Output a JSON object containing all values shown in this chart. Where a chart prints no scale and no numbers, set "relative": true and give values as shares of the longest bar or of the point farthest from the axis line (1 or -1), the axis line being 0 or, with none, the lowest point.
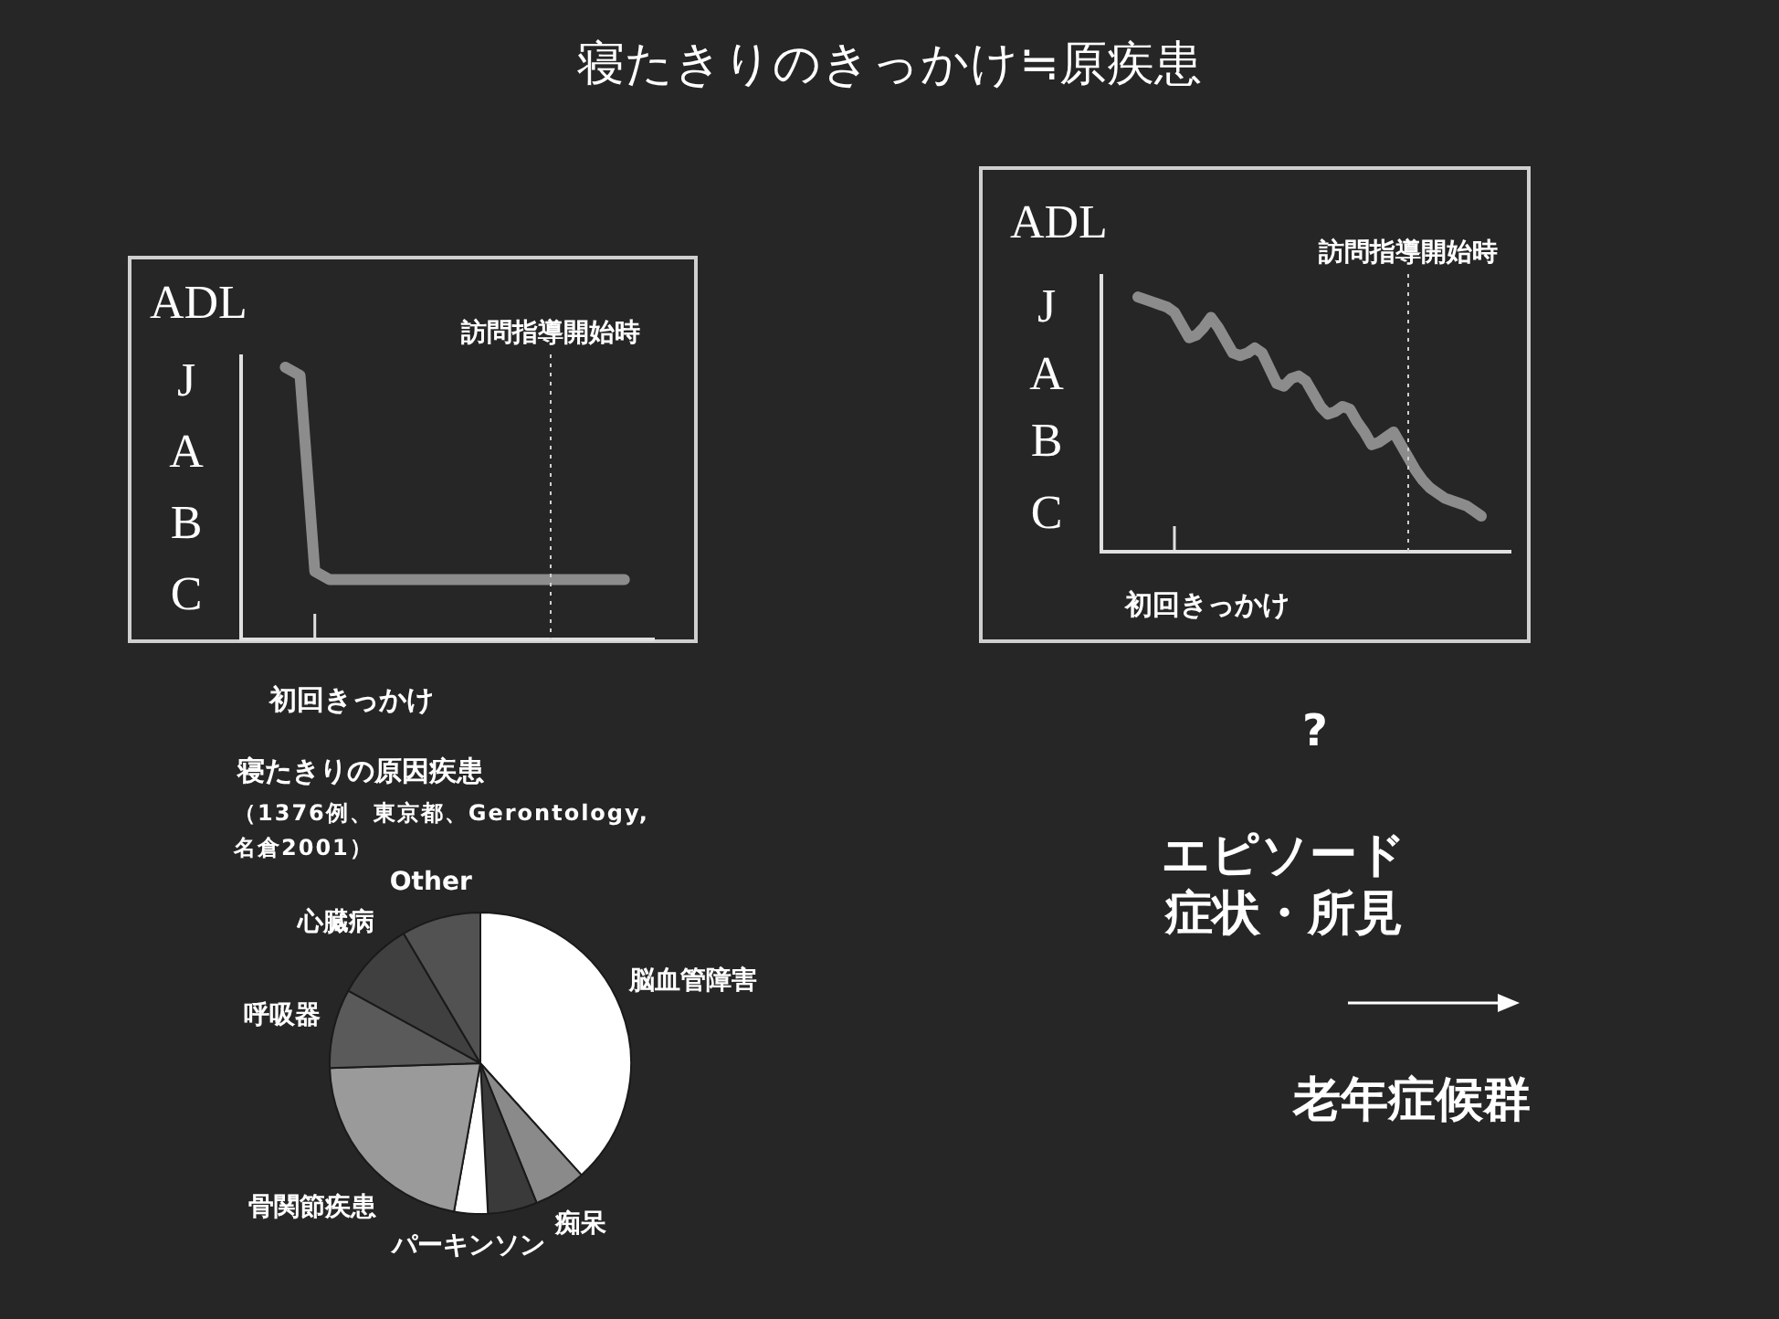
{
  "chart_data": [
    {
      "type": "line",
      "title": "寝たきりのきっかけ≒原疾患",
      "ylabel": "ADL",
      "xlabel": "初回きっかけ",
      "marker": "none",
      "relative": true,
      "annotations": [
        "J",
        "A",
        "B",
        "C"
      ],
      "categories": [
        null,
        null,
        null,
        null,
        null,
        null,
        null,
        null,
        null,
        null,
        null,
        null,
        null,
        null,
        null,
        null,
        null,
        null,
        null,
        null,
        null,
        null,
        null,
        null,
        null,
        null,
        null,
        null,
        null
      ],
      "series": [
        {
          "color": "#8c8c8c",
          "values": [
            null,
            null,
            null,
            1,
            0.97,
            0.25,
            0.22,
            0.22,
            0.22,
            0.22,
            0.22,
            0.22,
            0.22,
            0.22,
            0.22,
            0.22,
            0.22,
            0.22,
            0.22,
            0.22,
            0.22,
            0.22,
            0.22,
            0.22,
            0.22,
            0.22,
            0.22,
            null,
            null
          ]
        }
      ],
      "ref_lines": [
        {
          "axis": "x",
          "label": "訪問指導開始時",
          "line_style": "dotted",
          "color": "#d0d0d0"
        }
      ]
    },
    {
      "type": "line",
      "ylabel": "ADL",
      "xlabel": "初回きっかけ",
      "marker": "none",
      "relative": true,
      "annotations": [
        "J",
        "A",
        "B",
        "C"
      ],
      "categories": [
        null,
        null,
        null,
        null,
        null,
        null,
        null,
        null,
        null,
        null,
        null,
        null,
        null,
        null,
        null,
        null,
        null,
        null,
        null,
        null,
        null,
        null,
        null,
        null,
        null,
        null,
        null,
        null,
        null,
        null,
        null,
        null,
        null,
        null,
        null,
        null,
        null,
        null,
        null,
        null,
        null,
        null,
        null,
        null,
        null,
        null,
        null,
        null,
        null,
        null,
        null,
        null,
        null,
        null,
        null,
        null,
        null
      ],
      "series": [
        {
          "color": "#8c8c8c",
          "values": [
            null,
            null,
            null,
            null,
            null,
            1,
            0.99,
            0.98,
            0.97,
            0.96,
            0.94,
            0.89,
            0.84,
            0.85,
            0.88,
            0.92,
            0.88,
            0.83,
            0.78,
            0.77,
            0.78,
            0.8,
            0.78,
            0.72,
            0.66,
            0.65,
            0.68,
            0.69,
            0.67,
            0.62,
            0.57,
            0.54,
            0.55,
            0.57,
            0.56,
            0.51,
            0.47,
            0.42,
            0.43,
            0.45,
            0.47,
            0.42,
            0.37,
            0.32,
            0.28,
            0.25,
            0.23,
            0.21,
            0.2,
            0.19,
            0.18,
            0.16,
            0.14,
            null,
            null,
            null,
            null
          ]
        }
      ],
      "ref_lines": [
        {
          "axis": "x",
          "label": "訪問指導開始時",
          "line_style": "dotted",
          "color": "#d0d0d0"
        }
      ]
    },
    {
      "type": "pie",
      "title": "寝たきりの原因疾患",
      "subtitle": "（1376例、東京都、Gerontology, 名倉2001）",
      "categories": [
        "脳血管障害",
        "痴呆",
        null,
        "パーキンソン",
        "骨関節疾患",
        "呼吸器",
        "心臓病",
        "Other"
      ],
      "values": [
        38.3,
        5.6,
        5.3,
        3.6,
        21.7,
        8.5,
        8.5,
        8.5
      ],
      "colors": [
        "#ffffff",
        "#8a8a8a",
        "#3a3a3a",
        "#ffffff",
        "#9a9a9a",
        "#5a5a5a",
        "#404040",
        "#525252"
      ]
    },
    {
      "type": "other",
      "annotations": [
        "?",
        "エピソード",
        "症状・所見",
        "老年症候群"
      ]
    }
  ]
}
